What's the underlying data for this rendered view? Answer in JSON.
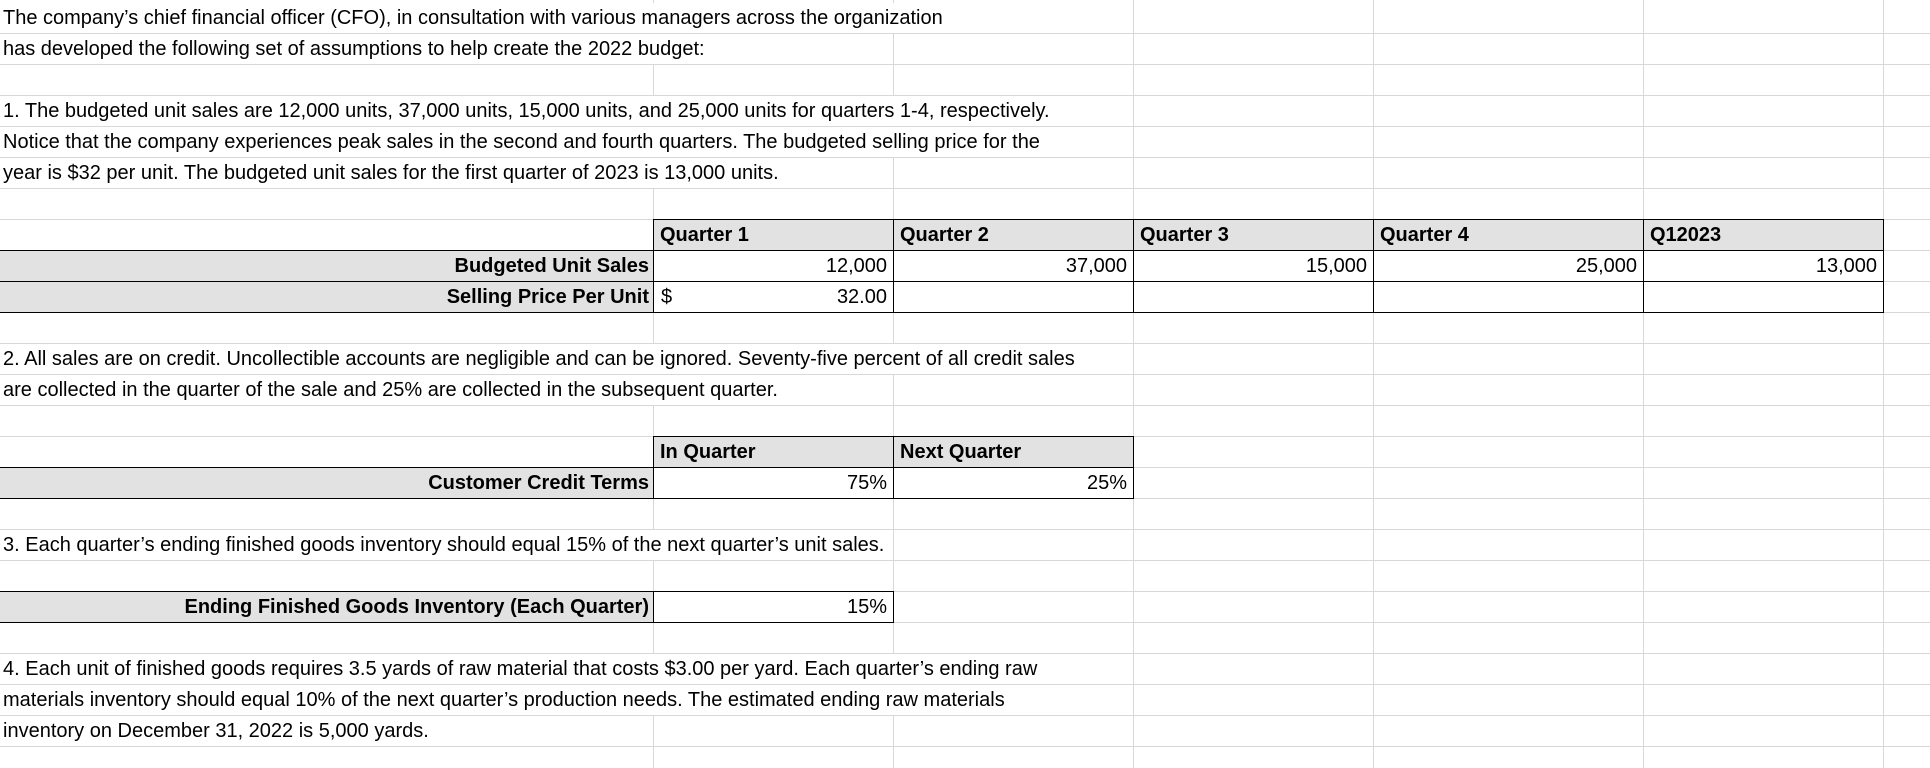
{
  "intro": {
    "line1": "The company’s chief financial officer (CFO), in consultation with various managers across the organization",
    "line2": "has developed the following set of assumptions to help create the 2022 budget:"
  },
  "assumption1": {
    "line1": "1. The budgeted unit sales are 12,000 units, 37,000 units, 15,000 units, and 25,000 units for quarters 1-4, respectively.",
    "line2": "Notice that the company experiences peak sales in the second and fourth quarters. The budgeted selling price for the",
    "line3": "year is $32 per unit. The budgeted unit sales for the first quarter of 2023 is 13,000 units."
  },
  "sales_table": {
    "columns": [
      "Quarter 1",
      "Quarter 2",
      "Quarter 3",
      "Quarter 4",
      "Q12023"
    ],
    "rows": [
      {
        "label": "Budgeted Unit Sales",
        "values": [
          "12,000",
          "37,000",
          "15,000",
          "25,000",
          "13,000"
        ]
      },
      {
        "label": "Selling Price Per Unit",
        "currency_symbol": "$",
        "values": [
          "32.00",
          "",
          "",
          "",
          ""
        ]
      }
    ]
  },
  "assumption2": {
    "line1": "2. All sales are on credit. Uncollectible accounts are negligible and can be ignored. Seventy-five percent of all credit sales",
    "line2": "are collected in the quarter of the sale and 25% are collected in the subsequent quarter."
  },
  "credit_table": {
    "columns": [
      "In Quarter",
      "Next Quarter"
    ],
    "rows": [
      {
        "label": "Customer Credit Terms",
        "values": [
          "75%",
          "25%"
        ]
      }
    ]
  },
  "assumption3": {
    "line1": "3. Each quarter’s ending finished goods inventory should equal 15% of the next quarter’s unit sales."
  },
  "inventory_table": {
    "rows": [
      {
        "label": "Ending Finished Goods Inventory (Each Quarter)",
        "values": [
          "15%"
        ]
      }
    ]
  },
  "assumption4": {
    "line1": "4. Each unit of finished goods requires 3.5 yards of raw material that costs $3.00 per yard. Each quarter’s ending raw",
    "line2": "materials inventory should equal 10% of the next quarter’s production needs. The estimated ending raw materials",
    "line3": "inventory on December 31, 2022 is 5,000 yards."
  },
  "colors": {
    "cell_fill": "#e2e2e2",
    "gridline": "#d8d8d8",
    "table_border": "#000000",
    "text": "#000000"
  }
}
